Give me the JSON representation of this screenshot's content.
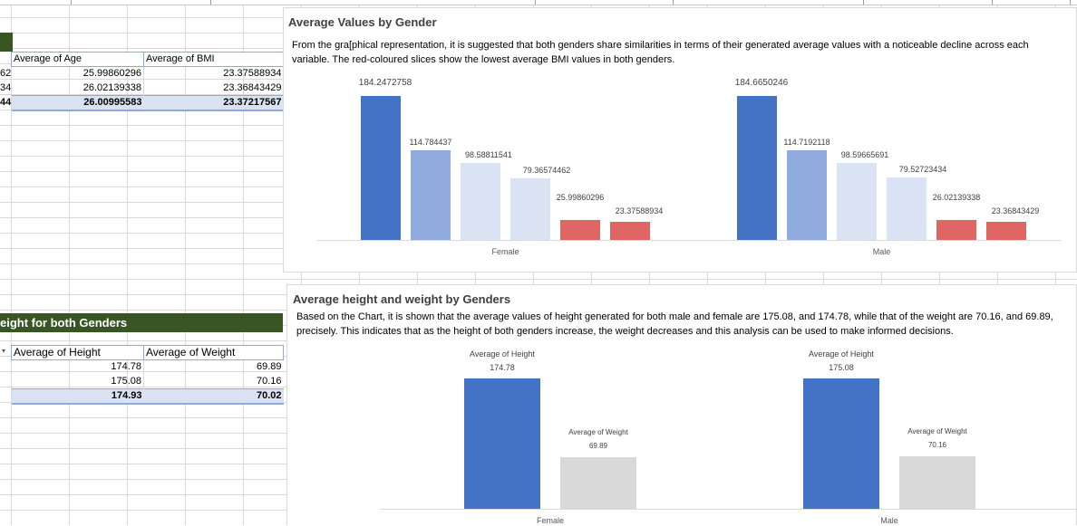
{
  "sheet": {
    "row_stubs_top": [
      "62",
      "34",
      "44"
    ],
    "table1": {
      "headers": [
        "Average of Age",
        "Average of BMI"
      ],
      "rows": [
        [
          "25.99860296",
          "23.37588934"
        ],
        [
          "26.02139338",
          "23.36843429"
        ]
      ],
      "total": [
        "26.00995583",
        "23.37217567"
      ]
    },
    "table2_title": "eight for both Genders",
    "table2": {
      "headers": [
        "Average of Height",
        "Average of Weight"
      ],
      "rows": [
        [
          "174.78",
          "69.89"
        ],
        [
          "175.08",
          "70.16"
        ]
      ],
      "total": [
        "174.93",
        "70.02"
      ]
    },
    "filter_icon": "dropdown-arrow-icon"
  },
  "panel1": {
    "title": "Average Values by Gender",
    "description": "From the gra[phical representation, it is suggested that both genders share similarities in terms of their generated average values with a noticeable decline across  each variable. The red-coloured  slices show the lowest  average BMI values in both genders."
  },
  "panel2": {
    "title": "Average height and weight by Genders",
    "description": "Based on the Chart, it is shown that the average values of height generated for both male and female are 175.08, and 174.78, while that of the weight are 70.16, and 69.89, precisely. This indicates that as the height of both genders increase, the weight decreases and this analysis can be used to make informed decisions."
  },
  "chart_data": [
    {
      "type": "bar",
      "categories": [
        "Female",
        "Male"
      ],
      "series": [
        {
          "values": [
            184.2472758,
            184.6650246
          ],
          "labels": [
            "184.2472758",
            "184.6650246"
          ],
          "color": "#4472c4"
        },
        {
          "values": [
            114.784437,
            114.7192118
          ],
          "labels": [
            "114.784437",
            "114.7192118"
          ],
          "color": "#8faadc"
        },
        {
          "values": [
            98.58811541,
            98.59665691
          ],
          "labels": [
            "98.58811541",
            "98.59665691"
          ],
          "color": "#dae3f3"
        },
        {
          "values": [
            79.36574462,
            79.52723434
          ],
          "labels": [
            "79.36574462",
            "79.52723434"
          ],
          "color": "#dae3f3"
        },
        {
          "values": [
            25.99860296,
            26.02139338
          ],
          "labels": [
            "25.99860296",
            "26.02139338"
          ],
          "color": "#e06666"
        },
        {
          "values": [
            23.37588934,
            23.36843429
          ],
          "labels": [
            "23.37588934",
            "23.36843429"
          ],
          "color": "#e06666"
        }
      ]
    },
    {
      "type": "bar",
      "categories": [
        "Female",
        "Male"
      ],
      "series": [
        {
          "name": "Average of Height",
          "values": [
            174.78,
            175.08
          ],
          "labels": [
            "174.78",
            "175.08"
          ],
          "color": "#4472c4"
        },
        {
          "name": "Average of Weight",
          "values": [
            69.89,
            70.16
          ],
          "labels": [
            "69.89",
            "70.16"
          ],
          "color": "#d9d9d9"
        }
      ]
    }
  ]
}
